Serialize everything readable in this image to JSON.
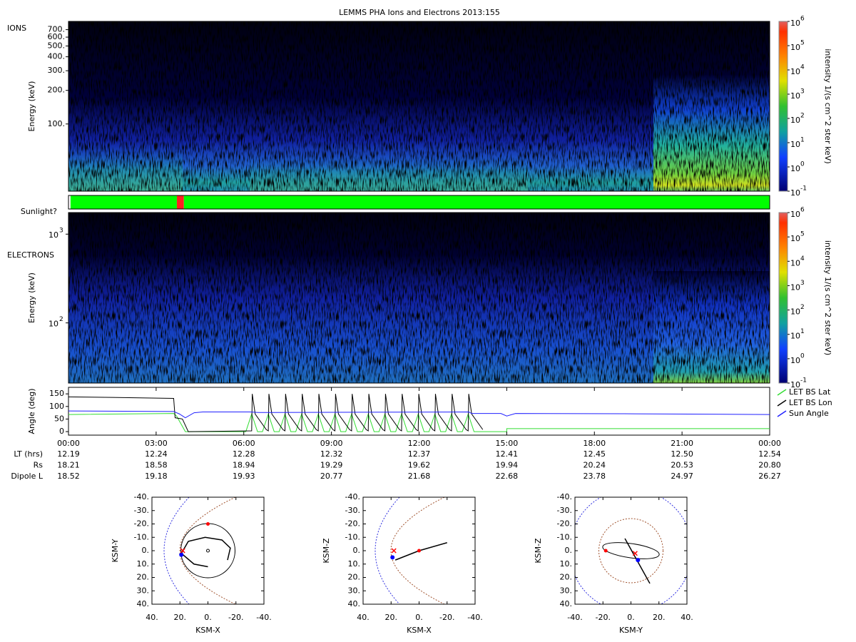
{
  "title": "LEMMS PHA Ions and Electrons  2013:155",
  "chart_data": [
    {
      "type": "spectrogram",
      "label": "IONS",
      "ylabel": "Energy (keV)",
      "log_y": true,
      "ylim": [
        25,
        830
      ],
      "yticks": [
        {
          "value": 700,
          "label": "700."
        },
        {
          "value": 600,
          "label": "600."
        },
        {
          "value": 500,
          "label": "500."
        },
        {
          "value": 400,
          "label": "400."
        },
        {
          "value": 300,
          "label": "300."
        },
        {
          "value": 200,
          "label": "200."
        },
        {
          "value": 100,
          "label": "100."
        }
      ],
      "colorbar": {
        "label": "intensity 1/(s cm^2 ster keV)",
        "log": true,
        "lim": [
          0.1,
          1000000
        ],
        "ticks": [
          {
            "value": 1000000,
            "base": "10",
            "exponent": "6"
          },
          {
            "value": 100000,
            "base": "10",
            "exponent": "5"
          },
          {
            "value": 10000,
            "base": "10",
            "exponent": "4"
          },
          {
            "value": 1000,
            "base": "10",
            "exponent": "3"
          },
          {
            "value": 100,
            "base": "10",
            "exponent": "2"
          },
          {
            "value": 10,
            "base": "10",
            "exponent": "1"
          },
          {
            "value": 1,
            "base": "10",
            "exponent": "0"
          },
          {
            "value": 0.1,
            "base": "10",
            "exponent": "-1"
          }
        ]
      }
    },
    {
      "type": "timeline",
      "label": "Sunlight?",
      "xlim": [
        0,
        24
      ],
      "segments": [
        {
          "start": 0,
          "end": 0.07,
          "color": "#ffffff"
        },
        {
          "start": 0.07,
          "end": 3.71,
          "color": "#00ff00"
        },
        {
          "start": 3.71,
          "end": 3.95,
          "color": "#ff2020"
        },
        {
          "start": 3.95,
          "end": 24,
          "color": "#00ff00"
        }
      ]
    },
    {
      "type": "spectrogram",
      "label": "ELECTRONS",
      "ylabel": "Energy (keV)",
      "log_y": true,
      "ylim": [
        21,
        1750
      ],
      "yticks": [
        {
          "value": 1000,
          "base": "10",
          "exponent": "3"
        },
        {
          "value": 100,
          "base": "10",
          "exponent": "2"
        }
      ],
      "colorbar": {
        "label": "intensity 1/(s cm^2 ster keV)",
        "log": true,
        "lim": [
          0.1,
          1000000
        ],
        "ticks": [
          {
            "value": 1000000,
            "base": "10",
            "exponent": "6"
          },
          {
            "value": 100000,
            "base": "10",
            "exponent": "5"
          },
          {
            "value": 10000,
            "base": "10",
            "exponent": "4"
          },
          {
            "value": 1000,
            "base": "10",
            "exponent": "3"
          },
          {
            "value": 100,
            "base": "10",
            "exponent": "2"
          },
          {
            "value": 10,
            "base": "10",
            "exponent": "1"
          },
          {
            "value": 1,
            "base": "10",
            "exponent": "0"
          },
          {
            "value": 0.1,
            "base": "10",
            "exponent": "-1"
          }
        ]
      }
    },
    {
      "type": "line",
      "ylabel": "Angle (deg)",
      "ylim": [
        -14,
        176
      ],
      "yticks": [
        0,
        50,
        100,
        150
      ],
      "xlim": [
        0,
        24
      ],
      "xticks": [
        {
          "value": 0,
          "label": "00:00"
        },
        {
          "value": 3,
          "label": "03:00"
        },
        {
          "value": 6,
          "label": "06:00"
        },
        {
          "value": 9,
          "label": "09:00"
        },
        {
          "value": 12,
          "label": "12:00"
        },
        {
          "value": 15,
          "label": "15:00"
        },
        {
          "value": 18,
          "label": "18:00"
        },
        {
          "value": 21,
          "label": "21:00"
        },
        {
          "value": 24,
          "label": "00:00"
        }
      ],
      "legend": "outside-right",
      "series": [
        {
          "name": "LET BS Lat",
          "color": "#33dd33",
          "x": [
            0,
            3.6,
            3.7,
            4.0,
            6.07,
            6.27,
            6.47,
            6.64,
            6.84,
            7.04,
            7.21,
            7.41,
            7.61,
            7.78,
            7.98,
            8.18,
            8.35,
            8.55,
            8.75,
            8.92,
            9.12,
            9.32,
            9.49,
            9.69,
            9.89,
            10.06,
            10.26,
            10.46,
            10.63,
            10.83,
            11.03,
            11.2,
            11.4,
            11.6,
            11.77,
            11.97,
            12.17,
            12.34,
            12.54,
            12.74,
            12.91,
            13.11,
            13.31,
            13.48,
            13.68,
            13.88,
            15,
            15,
            24
          ],
          "values": [
            68,
            72,
            62,
            0,
            0,
            70,
            0,
            0,
            70,
            0,
            0,
            70,
            0,
            0,
            70,
            0,
            0,
            70,
            0,
            0,
            70,
            0,
            0,
            70,
            0,
            0,
            70,
            0,
            0,
            70,
            0,
            0,
            70,
            0,
            0,
            70,
            0,
            0,
            70,
            0,
            0,
            70,
            0,
            0,
            70,
            0,
            0,
            12,
            12
          ]
        },
        {
          "name": "LET BS Lon",
          "color": "#000000",
          "x": [
            0,
            1.5,
            3.6,
            3.65,
            3.9,
            4.1,
            6.27,
            6.29,
            6.39,
            6.77,
            6.84,
            6.86,
            6.96,
            7.34,
            7.41,
            7.43,
            7.53,
            7.91,
            7.98,
            8.0,
            8.1,
            8.48,
            8.55,
            8.57,
            8.67,
            9.05,
            9.12,
            9.14,
            9.24,
            9.62,
            9.69,
            9.71,
            9.81,
            10.19,
            10.26,
            10.28,
            10.38,
            10.76,
            10.83,
            10.85,
            10.95,
            11.33,
            11.4,
            11.42,
            11.52,
            11.9,
            11.97,
            11.99,
            12.09,
            12.47,
            12.54,
            12.56,
            12.66,
            13.04,
            13.11,
            13.13,
            13.23,
            13.61,
            13.68,
            13.7,
            13.8,
            14.18
          ],
          "values": [
            138,
            136,
            132,
            55,
            50,
            0,
            3,
            150,
            70,
            8,
            3,
            150,
            70,
            8,
            3,
            150,
            70,
            8,
            3,
            150,
            70,
            8,
            3,
            150,
            70,
            8,
            3,
            150,
            70,
            8,
            3,
            150,
            70,
            8,
            3,
            150,
            70,
            8,
            3,
            150,
            70,
            8,
            3,
            150,
            70,
            8,
            3,
            150,
            70,
            8,
            3,
            150,
            70,
            8,
            3,
            150,
            70,
            8,
            3,
            150,
            70,
            8
          ]
        },
        {
          "name": "Sun Angle",
          "color": "#2020ff",
          "x": [
            0,
            3.6,
            3.8,
            4.0,
            4.3,
            4.6,
            6.2,
            6.5,
            13.7,
            13.8,
            14.8,
            15.0,
            15.3,
            19,
            24
          ],
          "values": [
            82,
            80,
            70,
            55,
            75,
            78,
            78,
            76,
            78,
            72,
            72,
            62,
            72,
            71,
            68
          ]
        }
      ]
    },
    {
      "type": "orbit",
      "xlabel": "KSM-X",
      "ylabel": "KSM-Y",
      "xlim": [
        40,
        -40
      ],
      "ylim": [
        -40,
        40
      ],
      "xticks": [
        {
          "value": 40,
          "label": "40."
        },
        {
          "value": 20,
          "label": "20."
        },
        {
          "value": 0,
          "label": "0."
        },
        {
          "value": -20,
          "label": "-20."
        },
        {
          "value": -40,
          "label": "-40."
        }
      ],
      "yticks": [
        {
          "value": -40,
          "label": "-40."
        },
        {
          "value": -30,
          "label": "-30."
        },
        {
          "value": -20,
          "label": "-20."
        },
        {
          "value": -10,
          "label": "-10."
        },
        {
          "value": 0,
          "label": "0."
        },
        {
          "value": 10,
          "label": "10."
        },
        {
          "value": 20,
          "label": "20."
        },
        {
          "value": 30,
          "label": "30."
        },
        {
          "value": 40,
          "label": "40."
        }
      ],
      "trajectory": {
        "color": "#000000",
        "x": [
          0,
          10,
          19,
          14,
          2,
          -10,
          -16,
          -14
        ],
        "y": [
          12,
          10,
          2,
          -7,
          -10,
          -8,
          -2,
          7
        ]
      },
      "moon": {
        "color": "#ff0000",
        "x": [
          0
        ],
        "y": [
          -20
        ]
      },
      "spacecraft": {
        "color": "#ff0000",
        "x": [
          18
        ],
        "y": [
          0
        ]
      },
      "track": {
        "color": "#0000ff",
        "x": [
          19
        ],
        "y": [
          3
        ]
      }
    },
    {
      "type": "orbit",
      "xlabel": "KSM-X",
      "ylabel": "KSM-Z",
      "xlim": [
        40,
        -40
      ],
      "ylim": [
        -40,
        40
      ],
      "xticks": [
        {
          "value": 40,
          "label": "40."
        },
        {
          "value": 20,
          "label": "20."
        },
        {
          "value": 0,
          "label": "0."
        },
        {
          "value": -20,
          "label": "-20."
        },
        {
          "value": -40,
          "label": "-40."
        }
      ],
      "yticks": [
        {
          "value": -40,
          "label": "-40."
        },
        {
          "value": -30,
          "label": "-30."
        },
        {
          "value": -20,
          "label": "-20."
        },
        {
          "value": -10,
          "label": "-10."
        },
        {
          "value": 0,
          "label": "0."
        },
        {
          "value": 10,
          "label": "10."
        },
        {
          "value": 20,
          "label": "20."
        },
        {
          "value": 30,
          "label": "30."
        },
        {
          "value": 40,
          "label": "40."
        }
      ],
      "trajectory": {
        "color": "#000000",
        "x": [
          17,
          0,
          -20
        ],
        "y": [
          7,
          0,
          -6
        ]
      },
      "moon": {
        "color": "#ff0000",
        "x": [
          0
        ],
        "y": [
          0
        ]
      },
      "spacecraft": {
        "color": "#ff0000",
        "x": [
          18
        ],
        "y": [
          0
        ]
      },
      "track": {
        "color": "#0000ff",
        "x": [
          19
        ],
        "y": [
          5
        ]
      }
    },
    {
      "type": "orbit",
      "xlabel": "KSM-Y",
      "ylabel": "KSM-Z",
      "xlim": [
        -40,
        40
      ],
      "ylim": [
        -40,
        40
      ],
      "xticks": [
        {
          "value": -40,
          "label": "-40."
        },
        {
          "value": -20,
          "label": "-20."
        },
        {
          "value": 0,
          "label": "0."
        },
        {
          "value": 20,
          "label": "20."
        },
        {
          "value": 40,
          "label": "40."
        }
      ],
      "yticks": [
        {
          "value": -40,
          "label": "-40."
        },
        {
          "value": -30,
          "label": "-30."
        },
        {
          "value": -20,
          "label": "-20."
        },
        {
          "value": -10,
          "label": "-10."
        },
        {
          "value": 0,
          "label": "0."
        },
        {
          "value": 10,
          "label": "10."
        },
        {
          "value": 20,
          "label": "20."
        },
        {
          "value": 30,
          "label": "30."
        },
        {
          "value": 40,
          "label": "40."
        }
      ],
      "trajectory": {
        "color": "#000000",
        "x": [
          -4.3,
          13.5
        ],
        "y": [
          -9.1,
          24.5
        ]
      },
      "moon": {
        "color": "#ff0000",
        "x": [
          -18
        ],
        "y": [
          0
        ]
      },
      "spacecraft": {
        "color": "#ff0000",
        "x": [
          3
        ],
        "y": [
          2
        ]
      },
      "track": {
        "color": "#0000ff",
        "x": [
          5
        ],
        "y": [
          7
        ]
      }
    }
  ],
  "ephemeris": [
    {
      "label": "LT (hrs)",
      "values": [
        "12.19",
        "12.24",
        "12.28",
        "12.32",
        "12.37",
        "12.41",
        "12.45",
        "12.50",
        "12.54"
      ]
    },
    {
      "label": "Rs",
      "values": [
        "18.21",
        "18.58",
        "18.94",
        "19.29",
        "19.62",
        "19.94",
        "20.24",
        "20.53",
        "20.80"
      ]
    },
    {
      "label": "Dipole L",
      "values": [
        "18.52",
        "19.18",
        "19.93",
        "20.77",
        "21.68",
        "22.68",
        "23.78",
        "24.97",
        "26.27"
      ]
    }
  ]
}
